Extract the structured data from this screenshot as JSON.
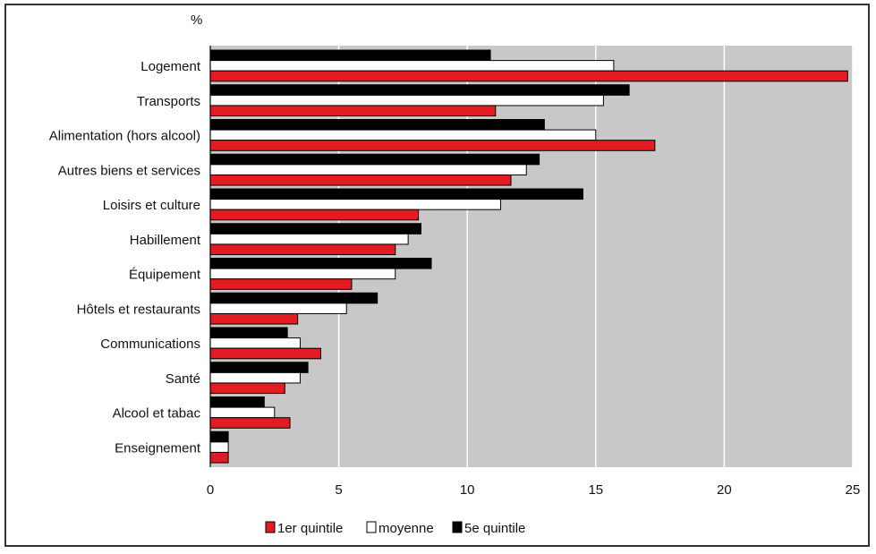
{
  "chart_data": {
    "type": "bar",
    "orientation": "horizontal",
    "unit_label": "%",
    "categories": [
      "Logement",
      "Transports",
      "Alimentation (hors alcool)",
      "Autres biens et services",
      "Loisirs et culture",
      "Habillement",
      "Équipement",
      "Hôtels et restaurants",
      "Communications",
      "Santé",
      "Alcool et tabac",
      "Enseignement"
    ],
    "series": [
      {
        "name": "5e quintile",
        "color": "#000000",
        "values": [
          10.9,
          16.3,
          13.0,
          12.8,
          14.5,
          8.2,
          8.6,
          6.5,
          3.0,
          3.8,
          2.1,
          0.7
        ]
      },
      {
        "name": "moyenne",
        "color": "#ffffff",
        "values": [
          15.7,
          15.3,
          15.0,
          12.3,
          11.3,
          7.7,
          7.2,
          5.3,
          3.5,
          3.5,
          2.5,
          0.7
        ]
      },
      {
        "name": "1er quintile",
        "color": "#e31b23",
        "values": [
          24.8,
          11.1,
          17.3,
          11.7,
          8.1,
          7.2,
          5.5,
          3.4,
          4.3,
          2.9,
          3.1,
          0.7
        ]
      }
    ],
    "xlim": [
      0,
      25
    ],
    "xticks": [
      0,
      5,
      10,
      15,
      20,
      25
    ],
    "grid": true,
    "legend": {
      "position": "bottom",
      "entries": [
        {
          "label": "1er quintile",
          "color": "#e31b23"
        },
        {
          "label": "moyenne",
          "color": "#ffffff"
        },
        {
          "label": "5e quintile",
          "color": "#000000"
        }
      ]
    }
  }
}
